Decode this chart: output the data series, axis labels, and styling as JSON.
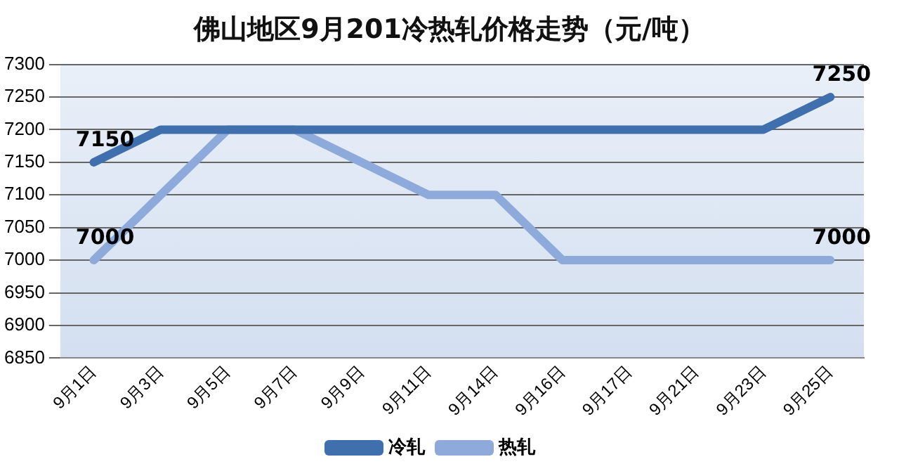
{
  "chart_data": {
    "type": "line",
    "title": "佛山地区9月201冷热轧价格走势（元/吨）",
    "categories": [
      "9月1日",
      "9月3日",
      "9月5日",
      "9月7日",
      "9月9日",
      "9月11日",
      "9月14日",
      "9月16日",
      "9月17日",
      "9月21日",
      "9月23日",
      "9月25日"
    ],
    "series": [
      {
        "name": "冷轧",
        "color": "#3f6fad",
        "values": [
          7150,
          7200,
          7200,
          7200,
          7200,
          7200,
          7200,
          7200,
          7200,
          7200,
          7200,
          7250
        ],
        "value_labels": [
          "7150",
          null,
          null,
          null,
          null,
          null,
          null,
          null,
          null,
          null,
          null,
          "7250"
        ]
      },
      {
        "name": "热轧",
        "color": "#8eaadb",
        "values": [
          7000,
          7100,
          7200,
          7200,
          7150,
          7100,
          7100,
          7000,
          7000,
          7000,
          7000,
          7000
        ],
        "value_labels": [
          "7000",
          null,
          null,
          null,
          null,
          null,
          null,
          null,
          null,
          null,
          null,
          "7000"
        ]
      }
    ],
    "ylim": [
      6850,
      7300
    ],
    "yticks": [
      6850,
      6900,
      6950,
      7000,
      7050,
      7100,
      7150,
      7200,
      7250,
      7300
    ],
    "grid": "y",
    "legend": "bottom",
    "marker": "none",
    "line_style": "solid"
  }
}
